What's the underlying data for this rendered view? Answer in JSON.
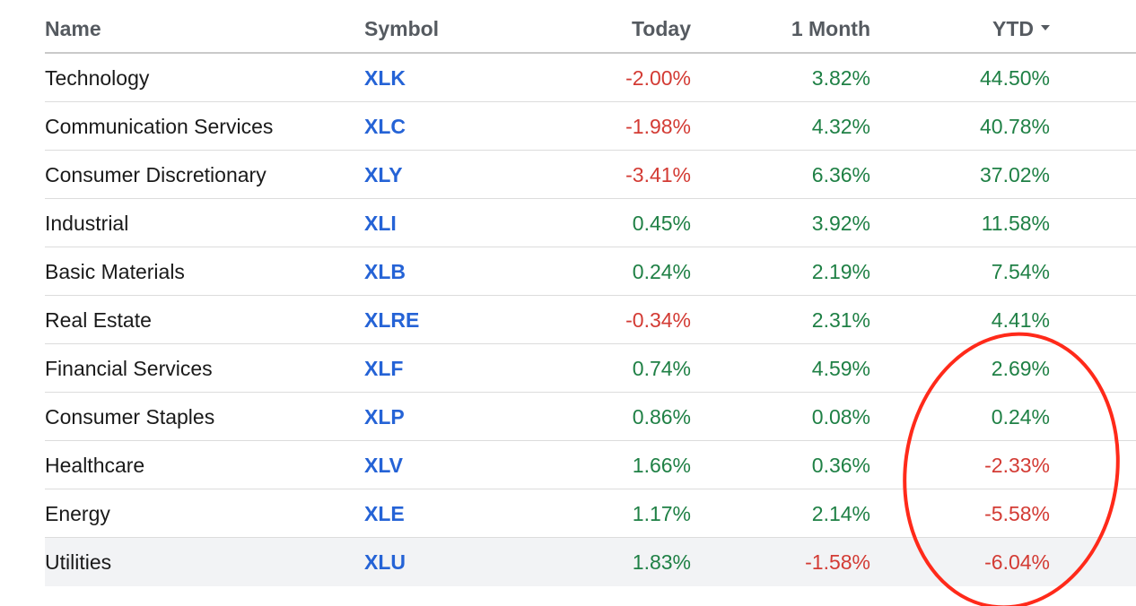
{
  "columns": {
    "name": "Name",
    "symbol": "Symbol",
    "today": "Today",
    "month": "1 Month",
    "ytd": "YTD"
  },
  "sort_icon": "caret-down-icon",
  "colors": {
    "positive": "#1f8045",
    "negative": "#d33b34",
    "symbol": "#2563d6",
    "annotation": "#ff2a1a"
  },
  "rows": [
    {
      "name": "Technology",
      "symbol": "XLK",
      "today": "-2.00%",
      "month": "3.82%",
      "ytd": "44.50%"
    },
    {
      "name": "Communication Services",
      "symbol": "XLC",
      "today": "-1.98%",
      "month": "4.32%",
      "ytd": "40.78%"
    },
    {
      "name": "Consumer Discretionary",
      "symbol": "XLY",
      "today": "-3.41%",
      "month": "6.36%",
      "ytd": "37.02%"
    },
    {
      "name": "Industrial",
      "symbol": "XLI",
      "today": "0.45%",
      "month": "3.92%",
      "ytd": "11.58%"
    },
    {
      "name": "Basic Materials",
      "symbol": "XLB",
      "today": "0.24%",
      "month": "2.19%",
      "ytd": "7.54%"
    },
    {
      "name": "Real Estate",
      "symbol": "XLRE",
      "today": "-0.34%",
      "month": "2.31%",
      "ytd": "4.41%"
    },
    {
      "name": "Financial Services",
      "symbol": "XLF",
      "today": "0.74%",
      "month": "4.59%",
      "ytd": "2.69%"
    },
    {
      "name": "Consumer Staples",
      "symbol": "XLP",
      "today": "0.86%",
      "month": "0.08%",
      "ytd": "0.24%"
    },
    {
      "name": "Healthcare",
      "symbol": "XLV",
      "today": "1.66%",
      "month": "0.36%",
      "ytd": "-2.33%"
    },
    {
      "name": "Energy",
      "symbol": "XLE",
      "today": "1.17%",
      "month": "2.14%",
      "ytd": "-5.58%"
    },
    {
      "name": "Utilities",
      "symbol": "XLU",
      "today": "1.83%",
      "month": "-1.58%",
      "ytd": "-6.04%"
    }
  ]
}
